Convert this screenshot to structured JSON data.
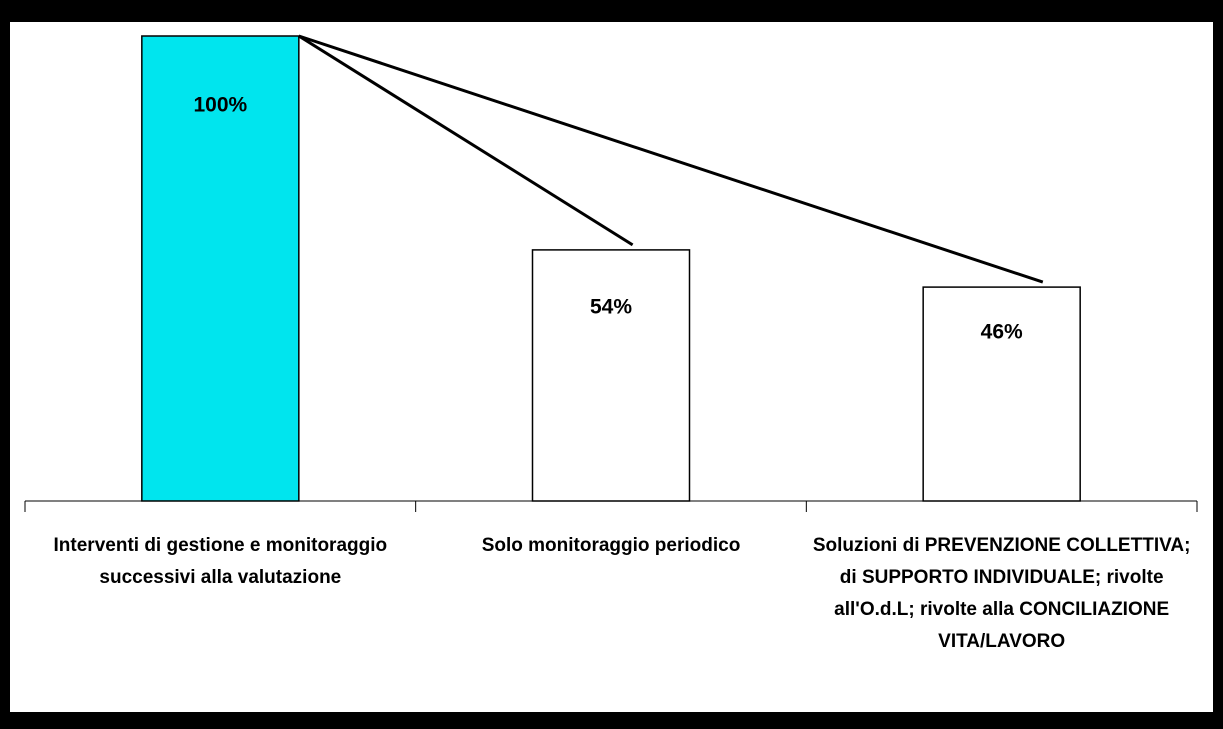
{
  "chart_data": {
    "type": "bar",
    "categories": [
      "Interventi di gestione e monitoraggio successivi alla valutazione",
      "Solo monitoraggio periodico",
      "Soluzioni di PREVENZIONE COLLETTIVA; di SUPPORTO INDIVIDUALE; rivolte all'O.d.L; rivolte alla CONCILIAZIONE VITA/LAVORO"
    ],
    "values": [
      100,
      54,
      46
    ],
    "value_labels": [
      "100%",
      "54%",
      "46%"
    ],
    "colors": [
      "#00e5ee",
      "#ffffff",
      "#ffffff"
    ],
    "ylim": [
      0,
      100
    ]
  }
}
